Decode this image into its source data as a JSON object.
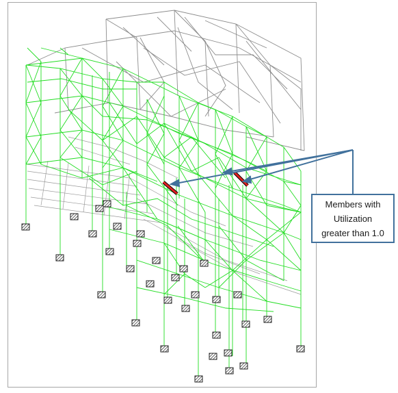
{
  "callout": {
    "lines": [
      "Members with",
      "Utilization",
      "greater than 1.0"
    ]
  },
  "colors": {
    "failed_member": "#e02020",
    "passing_member": "#22dd22",
    "unchecked_member": "#8c8c8c",
    "callout_border": "#41719c",
    "support": "#3a3a3a"
  },
  "legend_meaning": {
    "red": "Members with Utilization greater than 1.0"
  }
}
